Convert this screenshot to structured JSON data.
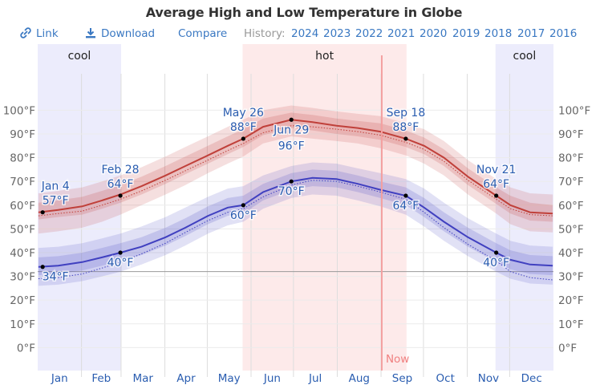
{
  "header": {
    "title": "Average High and Low Temperature in Globe"
  },
  "toolbar": {
    "link_label": "Link",
    "link_icon": "link-icon",
    "download_label": "Download",
    "download_icon": "download-icon",
    "compare_label": "Compare",
    "history_label": "History:",
    "history_years": [
      "2024",
      "2023",
      "2022",
      "2021",
      "2020",
      "2019",
      "2018",
      "2017",
      "2016"
    ]
  },
  "colors": {
    "link": "#3a78c2",
    "high_line": "#c0403a",
    "low_line": "#4040c0",
    "hot_band": "#fdeaea",
    "cool_band": "#ececfc",
    "now_line": "#f4a0a0",
    "annotation": "#2a5db0"
  },
  "chart_data": {
    "type": "line",
    "title": "Average High and Low Temperature in Globe",
    "xlabel": "",
    "ylabel": "",
    "x_unit": "day_of_year",
    "ylim": [
      -9,
      114
    ],
    "grid": true,
    "yticks": [
      0,
      10,
      20,
      30,
      40,
      50,
      60,
      70,
      80,
      90,
      100
    ],
    "ytick_labels": [
      "0°F",
      "10°F",
      "20°F",
      "30°F",
      "40°F",
      "50°F",
      "60°F",
      "70°F",
      "80°F",
      "90°F",
      "100°F"
    ],
    "months": [
      "Jan",
      "Feb",
      "Mar",
      "Apr",
      "May",
      "Jun",
      "Jul",
      "Aug",
      "Sep",
      "Oct",
      "Nov",
      "Dec"
    ],
    "freezing_line": 32,
    "now_day": 244,
    "now_label": "Now",
    "seasons": [
      {
        "label": "cool",
        "kind": "cool",
        "start_day": 1,
        "end_day": 59
      },
      {
        "label": "hot",
        "kind": "hot",
        "start_day": 146,
        "end_day": 261
      },
      {
        "label": "cool",
        "kind": "cool",
        "start_day": 325,
        "end_day": 365
      }
    ],
    "series": [
      {
        "name": "Average High",
        "x": [
          1,
          15,
          32,
          46,
          59,
          74,
          91,
          105,
          121,
          135,
          146,
          160,
          180,
          195,
          212,
          227,
          243,
          261,
          274,
          288,
          305,
          325,
          335,
          349,
          365
        ],
        "values": [
          57,
          58,
          59.5,
          62,
          64.5,
          68,
          72.5,
          76.5,
          81,
          85,
          88,
          93,
          96,
          95,
          93.5,
          92.5,
          91,
          88,
          85,
          80,
          72,
          64,
          60,
          57,
          56.5
        ],
        "p25": [
          54,
          55,
          56,
          58.5,
          61,
          64.5,
          69,
          73,
          77.5,
          81.5,
          84.5,
          89.5,
          92.5,
          91.5,
          90,
          89,
          87.5,
          84.5,
          81.5,
          76.5,
          68.5,
          60.5,
          56.5,
          53.5,
          53
        ],
        "p75": [
          61,
          62,
          63.5,
          66,
          68.5,
          72,
          76.5,
          80.5,
          85,
          89,
          92,
          96.5,
          99,
          98,
          96.5,
          95.5,
          94.5,
          91.5,
          88.5,
          83.5,
          75.5,
          67.5,
          64,
          61,
          60
        ],
        "p10": [
          48,
          49,
          50.5,
          53,
          56,
          60,
          64.5,
          68.5,
          73.5,
          77.5,
          80.5,
          86,
          89,
          88,
          87,
          86,
          84,
          81,
          77.5,
          72.5,
          64.5,
          56.5,
          52,
          49,
          48.5
        ],
        "p90": [
          65,
          66,
          67.5,
          70,
          72.5,
          76,
          80.5,
          84.5,
          89,
          93,
          96,
          100,
          102,
          101,
          99.5,
          98.5,
          97.5,
          94.5,
          92,
          87,
          79,
          71,
          67.5,
          65,
          64.5
        ],
        "trend": [
          55.5,
          56.5,
          57.5,
          60,
          62.5,
          66,
          70.5,
          74.5,
          79,
          83,
          86,
          90.5,
          93.5,
          93,
          92,
          91,
          89.5,
          86.5,
          83.5,
          78.5,
          70.5,
          62.5,
          58.5,
          56,
          55.5
        ]
      },
      {
        "name": "Average Low",
        "x": [
          1,
          15,
          32,
          46,
          59,
          74,
          91,
          105,
          121,
          135,
          146,
          160,
          180,
          195,
          212,
          227,
          243,
          261,
          274,
          288,
          305,
          325,
          335,
          349,
          365
        ],
        "values": [
          34,
          34.5,
          36,
          38,
          40,
          42.5,
          46.5,
          50.5,
          55.5,
          59,
          60,
          65.5,
          70,
          71.5,
          71,
          69,
          66.5,
          64,
          59,
          53,
          46.5,
          40,
          37,
          35,
          34.5
        ],
        "p25": [
          30.5,
          31,
          32.5,
          34.5,
          36.5,
          39,
          43,
          47,
          52,
          55.5,
          56.5,
          62,
          66.5,
          68,
          67.5,
          65.5,
          63,
          60,
          55,
          49,
          42.5,
          36,
          33,
          31,
          30.5
        ],
        "p75": [
          38,
          38.5,
          40,
          42,
          44,
          46.5,
          50.5,
          54.5,
          59.5,
          63,
          64,
          69,
          73.5,
          75,
          74.5,
          72.5,
          70,
          67.5,
          63,
          57,
          50.5,
          44,
          41,
          39,
          38.5
        ],
        "p10": [
          26,
          26.5,
          28,
          30,
          32,
          35,
          39,
          43,
          48,
          51.5,
          53,
          58.5,
          63,
          64.5,
          64,
          62,
          59.5,
          56,
          51,
          45,
          38.5,
          32,
          29,
          27,
          26.5
        ],
        "p90": [
          42,
          42.5,
          44,
          46,
          48,
          51,
          55,
          59,
          63.5,
          67,
          68,
          72.5,
          76.5,
          78,
          77.5,
          75.5,
          73.5,
          71,
          67,
          61,
          54.5,
          48,
          45,
          43,
          42.5
        ],
        "trend": [
          29,
          29.5,
          31,
          33.5,
          36,
          39.5,
          44,
          48.5,
          53.5,
          57,
          58.5,
          63.5,
          68.5,
          70.5,
          70,
          68,
          65.5,
          62.5,
          57,
          50.5,
          43.5,
          36.5,
          32,
          29.5,
          28.5
        ]
      }
    ],
    "annotations": [
      {
        "series": "high",
        "day": 4,
        "value": 57,
        "date": "Jan 4",
        "label": "57°F",
        "pos": "above"
      },
      {
        "series": "high",
        "day": 59,
        "value": 64,
        "date": "Feb 28",
        "label": "64°F",
        "pos": "above"
      },
      {
        "series": "high",
        "day": 146,
        "value": 88,
        "date": "May 26",
        "label": "88°F",
        "pos": "above"
      },
      {
        "series": "high",
        "day": 180,
        "value": 96,
        "date": "Jun 29",
        "label": "96°F",
        "pos": "below"
      },
      {
        "series": "high",
        "day": 261,
        "value": 88,
        "date": "Sep 18",
        "label": "88°F",
        "pos": "above"
      },
      {
        "series": "high",
        "day": 325,
        "value": 64,
        "date": "Nov 21",
        "label": "64°F",
        "pos": "above"
      },
      {
        "series": "low",
        "day": 4,
        "value": 34,
        "date": "",
        "label": "34°F",
        "pos": "below"
      },
      {
        "series": "low",
        "day": 59,
        "value": 40,
        "date": "",
        "label": "40°F",
        "pos": "below"
      },
      {
        "series": "low",
        "day": 146,
        "value": 60,
        "date": "",
        "label": "60°F",
        "pos": "below"
      },
      {
        "series": "low",
        "day": 180,
        "value": 70,
        "date": "",
        "label": "70°F",
        "pos": "below"
      },
      {
        "series": "low",
        "day": 261,
        "value": 64,
        "date": "",
        "label": "64°F",
        "pos": "below"
      },
      {
        "series": "low",
        "day": 325,
        "value": 40,
        "date": "",
        "label": "40°F",
        "pos": "below"
      }
    ]
  }
}
